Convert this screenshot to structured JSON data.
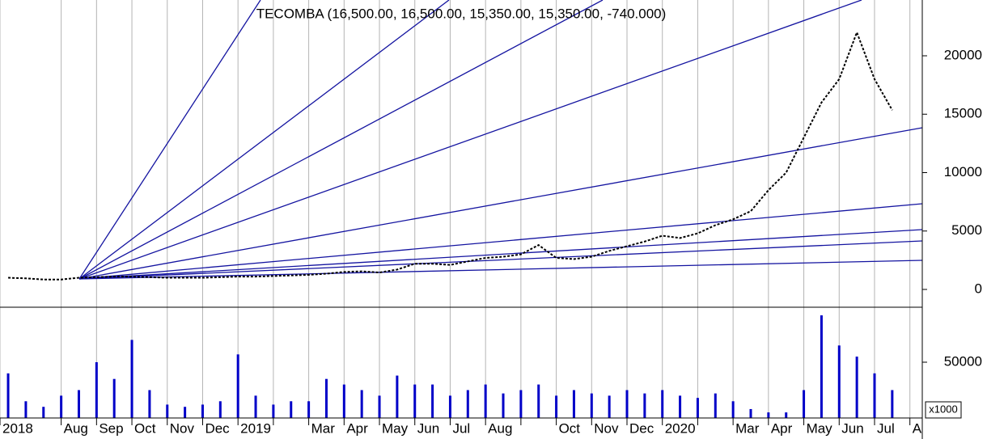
{
  "chart_data": [
    {
      "type": "line",
      "title": "TECOMBA (16,500.00, 16,500.00, 15,350.00, 15,350.00, -740.000)",
      "x": [
        -0.5,
        0,
        0.5,
        1,
        1.5,
        2,
        2.5,
        3,
        3.5,
        4,
        4.5,
        5,
        5.5,
        6,
        6.5,
        7,
        7.5,
        8,
        8.5,
        9,
        9.5,
        10,
        10.5,
        11,
        11.5,
        12,
        12.5,
        13,
        13.5,
        14,
        14.5,
        15,
        15.5,
        16,
        16.5,
        17,
        17.5,
        18,
        18.5,
        19,
        19.5,
        20,
        20.5,
        21,
        21.5,
        22,
        22.5,
        23,
        23.5,
        24,
        24.5
      ],
      "values": [
        1000,
        950,
        850,
        850,
        1000,
        1050,
        1100,
        1100,
        1050,
        1000,
        1000,
        1000,
        1050,
        1100,
        1100,
        1150,
        1200,
        1250,
        1350,
        1500,
        1550,
        1450,
        1700,
        2200,
        2200,
        2100,
        2400,
        2700,
        2800,
        3000,
        3800,
        2700,
        2600,
        2800,
        3300,
        3700,
        4100,
        4600,
        4400,
        4800,
        5500,
        6000,
        6700,
        8500,
        10000,
        13000,
        16000,
        18000,
        22000,
        18000,
        15350
      ],
      "color": "#000000",
      "xlim": [
        -0.73,
        25.35
      ],
      "ylim": [
        -1522,
        24775
      ],
      "yticks": [
        0,
        5000,
        10000,
        15000,
        20000
      ],
      "grid": true
    },
    {
      "type": "bar",
      "x": [
        -0.5,
        0,
        0.5,
        1,
        1.5,
        2,
        2.5,
        3,
        3.5,
        4,
        4.5,
        5,
        5.5,
        6,
        6.5,
        7,
        7.5,
        8,
        8.5,
        9,
        9.5,
        10,
        10.5,
        11,
        11.5,
        12,
        12.5,
        13,
        13.5,
        14,
        14.5,
        15,
        15.5,
        16,
        16.5,
        17,
        17.5,
        18,
        18.5,
        19,
        19.5,
        20,
        20.5,
        21,
        21.5,
        22,
        22.5,
        23,
        23.5,
        24,
        24.5
      ],
      "values": [
        40000,
        15000,
        10000,
        20000,
        25000,
        50000,
        35000,
        70000,
        25000,
        12000,
        10000,
        12000,
        15000,
        57000,
        20000,
        12000,
        15000,
        15000,
        35000,
        30000,
        25000,
        20000,
        38000,
        30000,
        30000,
        20000,
        25000,
        30000,
        22000,
        25000,
        30000,
        20000,
        25000,
        22000,
        20000,
        25000,
        22000,
        25000,
        20000,
        18000,
        22000,
        15000,
        8000,
        5000,
        5000,
        25000,
        92000,
        65000,
        55000,
        40000,
        25000
      ],
      "color": "#0000c8",
      "unit_label": "x1000",
      "xlim": [
        -0.73,
        25.35
      ],
      "ylim": [
        0,
        99280
      ],
      "yticks": [
        50000
      ],
      "xticks": [
        {
          "value": -0.73,
          "label": "2018"
        },
        {
          "value": 1,
          "label": "Aug"
        },
        {
          "value": 2,
          "label": "Sep"
        },
        {
          "value": 3,
          "label": "Oct"
        },
        {
          "value": 4,
          "label": "Nov"
        },
        {
          "value": 5,
          "label": "Dec"
        },
        {
          "value": 6,
          "label": "2019"
        },
        {
          "value": 7,
          "label": null
        },
        {
          "value": 8,
          "label": "Mar"
        },
        {
          "value": 9,
          "label": "Apr"
        },
        {
          "value": 10,
          "label": "May"
        },
        {
          "value": 11,
          "label": "Jun"
        },
        {
          "value": 12,
          "label": "Jul"
        },
        {
          "value": 13,
          "label": "Aug"
        },
        {
          "value": 14,
          "label": null
        },
        {
          "value": 15,
          "label": "Oct"
        },
        {
          "value": 16,
          "label": "Nov"
        },
        {
          "value": 17,
          "label": "Dec"
        },
        {
          "value": 18,
          "label": "2020"
        },
        {
          "value": 19,
          "label": null
        },
        {
          "value": 20,
          "label": "Mar"
        },
        {
          "value": 21,
          "label": "Apr"
        },
        {
          "value": 22,
          "label": "May"
        },
        {
          "value": 23,
          "label": "Jun"
        },
        {
          "value": 24,
          "label": "Jul"
        },
        {
          "value": 25,
          "label": "A"
        }
      ],
      "grid": true
    }
  ]
}
